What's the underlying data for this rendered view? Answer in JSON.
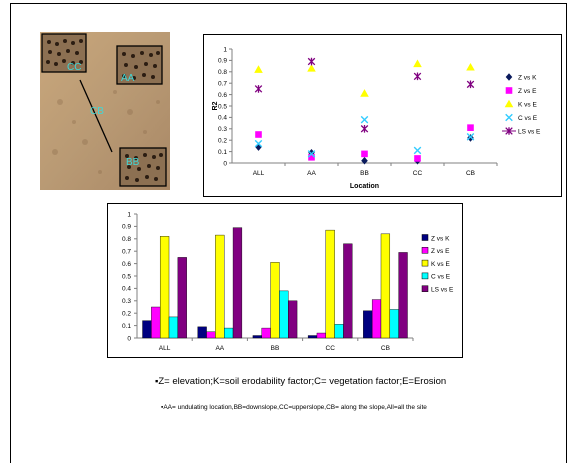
{
  "notes": {
    "definitions": "Z= elevation;K=soil erodability factor;C= vegetation factor;E=Erosion",
    "locations": "AA= undulating location,BB=downslope,CC=upperslope,CB= along the slope,All=all the site"
  },
  "photo": {
    "labels": [
      "CC",
      "AA",
      "CB",
      "BB"
    ],
    "label_color": "#3fd8d8"
  },
  "chart_data": [
    {
      "type": "scatter",
      "categories": [
        "ALL",
        "AA",
        "BB",
        "CC",
        "CB"
      ],
      "ylabel": "R2",
      "xlabel": "Location",
      "ylim": [
        0,
        1
      ],
      "yticks": [
        "0",
        "0.1",
        "0.2",
        "0.3",
        "0.4",
        "0.5",
        "0.6",
        "0.7",
        "0.8",
        "0.9",
        "1"
      ],
      "grid": false,
      "legend_position": "right",
      "series": [
        {
          "name": "Z vs K",
          "values": [
            0.14,
            0.09,
            0.02,
            0.02,
            0.22
          ],
          "color": "#0a1a5c",
          "marker": "diamond"
        },
        {
          "name": "Z vs E",
          "values": [
            0.25,
            0.05,
            0.08,
            0.04,
            0.31
          ],
          "color": "#ff00ff",
          "marker": "square"
        },
        {
          "name": "K vs E",
          "values": [
            0.82,
            0.83,
            0.61,
            0.87,
            0.84
          ],
          "color": "#ffff00",
          "marker": "triangle"
        },
        {
          "name": "C vs E",
          "values": [
            0.17,
            0.08,
            0.38,
            0.11,
            0.23
          ],
          "color": "#33ccff",
          "marker": "x"
        },
        {
          "name": "LS vs E",
          "values": [
            0.65,
            0.89,
            0.3,
            0.76,
            0.69
          ],
          "color": "#800080",
          "marker": "star",
          "legend_line": true
        }
      ]
    },
    {
      "type": "bar",
      "categories": [
        "ALL",
        "AA",
        "BB",
        "CC",
        "CB"
      ],
      "ylim": [
        0,
        1
      ],
      "yticks": [
        "0",
        "0.1",
        "0.2",
        "0.3",
        "0.4",
        "0.5",
        "0.6",
        "0.7",
        "0.8",
        "0.9",
        "1"
      ],
      "grid": false,
      "legend_position": "right",
      "series": [
        {
          "name": "Z vs K",
          "values": [
            0.14,
            0.09,
            0.02,
            0.02,
            0.22
          ],
          "color": "#000080"
        },
        {
          "name": "Z vs E",
          "values": [
            0.25,
            0.05,
            0.08,
            0.04,
            0.31
          ],
          "color": "#ff00ff"
        },
        {
          "name": "K vs E",
          "values": [
            0.82,
            0.83,
            0.61,
            0.87,
            0.84
          ],
          "color": "#ffff00"
        },
        {
          "name": "C vs E",
          "values": [
            0.17,
            0.08,
            0.38,
            0.11,
            0.23
          ],
          "color": "#00ffff"
        },
        {
          "name": "LS vs E",
          "values": [
            0.65,
            0.89,
            0.3,
            0.76,
            0.69
          ],
          "color": "#800080"
        }
      ]
    }
  ]
}
